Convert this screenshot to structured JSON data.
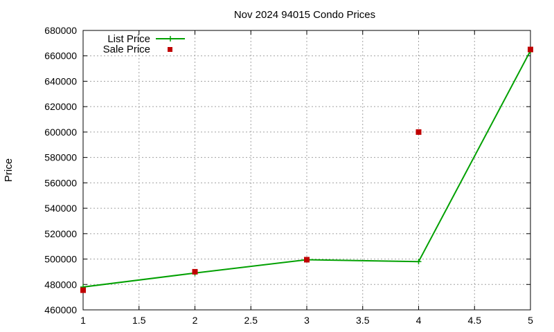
{
  "chart_data": {
    "type": "line",
    "title": "Nov 2024 94015 Condo Prices",
    "xlabel": "",
    "ylabel": "Price",
    "xlim": [
      1,
      5
    ],
    "ylim": [
      460000,
      680000
    ],
    "xticks": [
      "1",
      "1.5",
      "2",
      "2.5",
      "3",
      "3.5",
      "4",
      "4.5",
      "5"
    ],
    "yticks": [
      "460000",
      "480000",
      "500000",
      "520000",
      "540000",
      "560000",
      "580000",
      "600000",
      "620000",
      "640000",
      "660000",
      "680000"
    ],
    "grid": true,
    "legend_position": "top-left",
    "series": [
      {
        "name": "List Price",
        "style": "linespoints",
        "color": "#00a000",
        "x": [
          1,
          2,
          3,
          4,
          5
        ],
        "y": [
          478000,
          489000,
          499500,
          498000,
          664000
        ]
      },
      {
        "name": "Sale Price",
        "style": "points",
        "color": "#c00000",
        "x": [
          1,
          2,
          3,
          4,
          5
        ],
        "y": [
          475500,
          490000,
          499500,
          600000,
          665000
        ]
      }
    ]
  }
}
